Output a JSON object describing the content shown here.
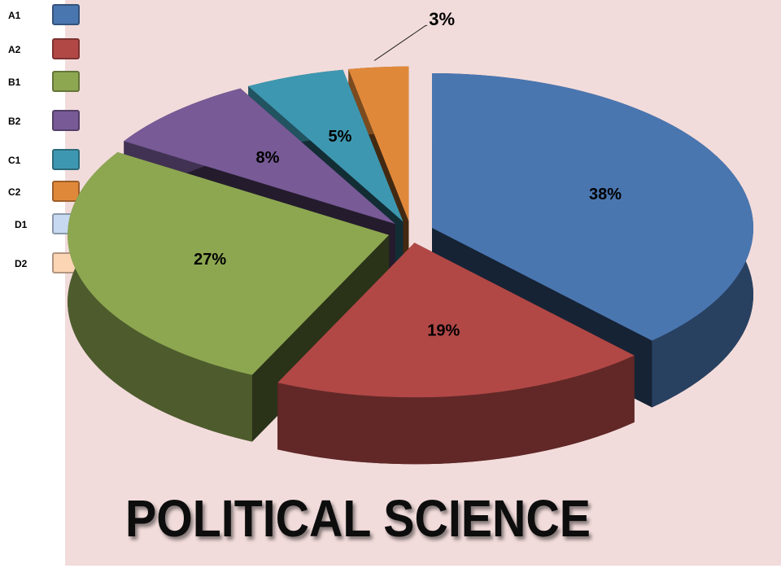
{
  "chart_data": {
    "type": "pie",
    "title": "POLITICAL SCIENCE",
    "categories": [
      "A1",
      "A2",
      "B1",
      "B2",
      "C1",
      "C2",
      "D1",
      "D2"
    ],
    "values": [
      38,
      19,
      27,
      8,
      5,
      3,
      0,
      0
    ],
    "value_labels": [
      "38%",
      "19%",
      "27%",
      "8%",
      "5%",
      "3%",
      null,
      null
    ],
    "colors": [
      "#4a76b0",
      "#b14846",
      "#8da751",
      "#775a96",
      "#3e97b0",
      "#e0883a",
      "#c6d9f1",
      "#fcd5b5"
    ],
    "legend": "left"
  }
}
